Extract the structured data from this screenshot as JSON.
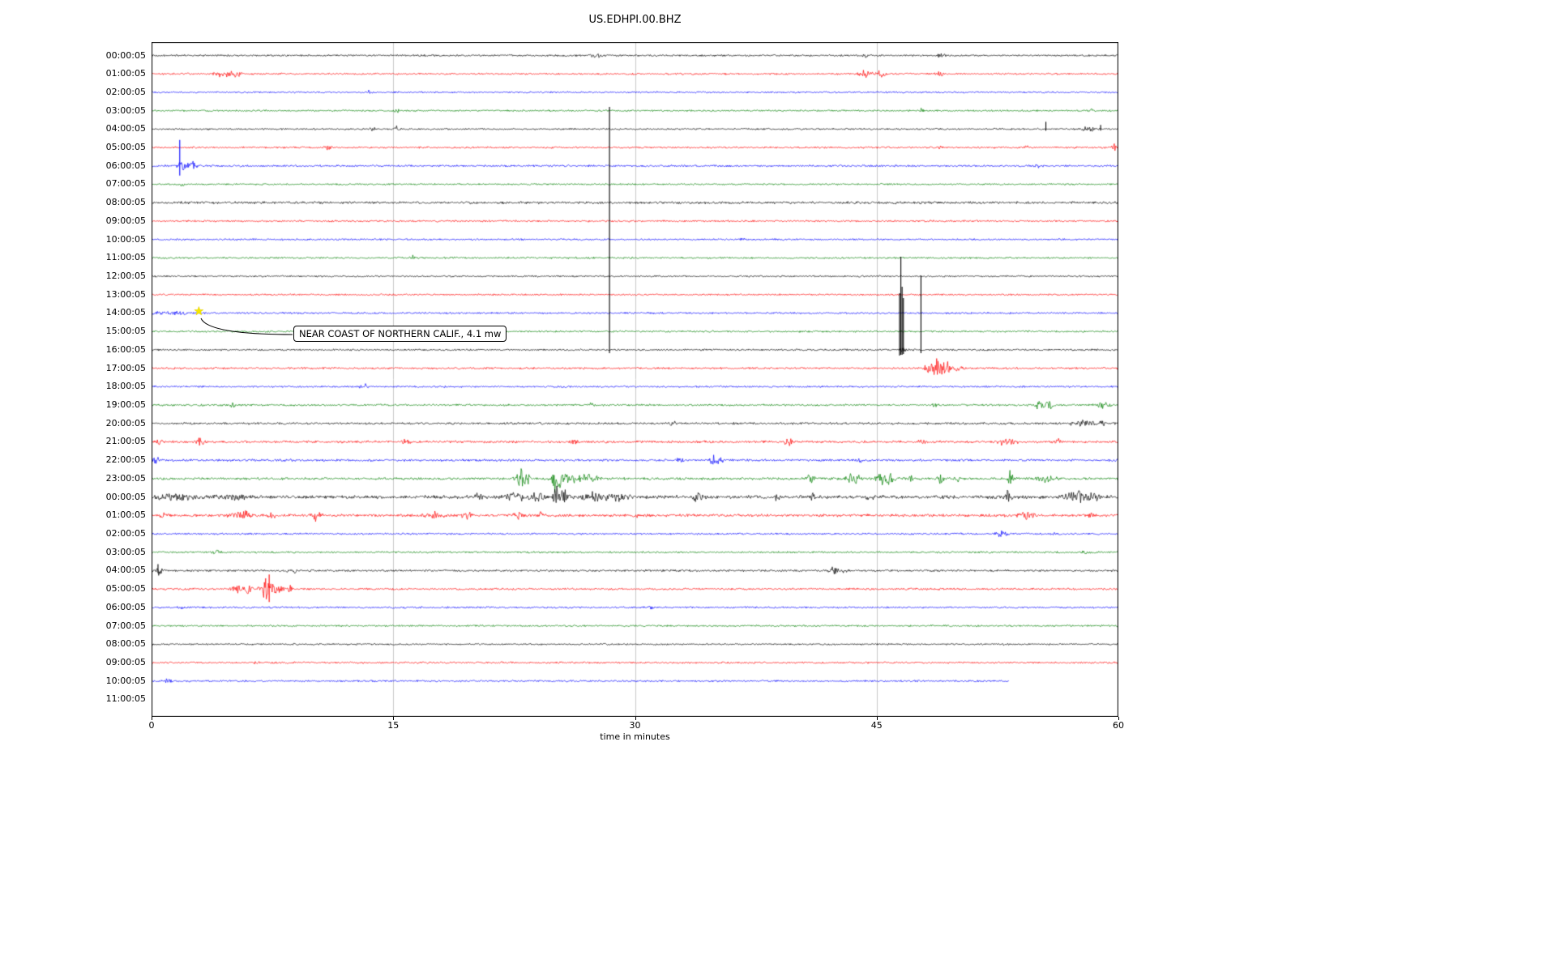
{
  "title": "US.EDHPI.00.BHZ",
  "axis": {
    "xlabel": "time in minutes",
    "x_ticks": [
      "0",
      "15",
      "30",
      "45",
      "60"
    ],
    "x_range": [
      0,
      60
    ]
  },
  "annotation": {
    "text": "NEAR COAST OF NORTHERN CALIF., 4.1 mw",
    "marker": "star",
    "row": "14:00:05",
    "x_min": 3.0
  },
  "palette": {
    "black": "#000000",
    "red": "#ff0000",
    "blue": "#0000ff",
    "green": "#008000",
    "grid": "#c9c9c9",
    "frame": "#000000",
    "star": "#f5e600"
  },
  "chart_data": {
    "type": "line",
    "subtype": "helicorder-seismogram",
    "x_unit": "minutes",
    "x_range": [
      0,
      60
    ],
    "minutes_per_row": 60,
    "rows": [
      {
        "label": "00:00:05",
        "color": "black",
        "base": 1.2,
        "bursts": [
          [
            27.5,
            0.8,
            2.5
          ],
          [
            44.3,
            0.3,
            2
          ],
          [
            49.0,
            0.4,
            3
          ]
        ],
        "spikes": [],
        "end": 60
      },
      {
        "label": "01:00:05",
        "color": "red",
        "base": 1.2,
        "bursts": [
          [
            4.6,
            1.2,
            4
          ],
          [
            5.3,
            0.5,
            3
          ],
          [
            44.4,
            0.8,
            5
          ],
          [
            45.3,
            0.5,
            4
          ],
          [
            48.9,
            0.4,
            3
          ]
        ],
        "spikes": [],
        "end": 60
      },
      {
        "label": "02:00:05",
        "color": "blue",
        "base": 1.1,
        "bursts": [
          [
            13.5,
            0.3,
            2
          ]
        ],
        "spikes": [],
        "end": 60
      },
      {
        "label": "03:00:05",
        "color": "green",
        "base": 1.1,
        "bursts": [
          [
            15.2,
            0.3,
            2.5
          ],
          [
            47.8,
            0.3,
            2.5
          ],
          [
            58.3,
            0.3,
            2
          ]
        ],
        "spikes": [],
        "end": 60
      },
      {
        "label": "04:00:05",
        "color": "black",
        "base": 1.1,
        "bursts": [
          [
            13.7,
            0.3,
            3
          ],
          [
            15.2,
            0.3,
            4
          ],
          [
            58.2,
            0.8,
            3
          ]
        ],
        "spikes": [
          [
            55.5,
            9,
            2
          ],
          [
            58.9,
            5,
            2
          ]
        ],
        "end": 60
      },
      {
        "label": "05:00:05",
        "color": "red",
        "base": 1.2,
        "bursts": [
          [
            11.0,
            0.4,
            4
          ],
          [
            49.0,
            0.3,
            2.5
          ],
          [
            54.3,
            0.3,
            2.5
          ],
          [
            59.8,
            0.3,
            6
          ]
        ],
        "spikes": [],
        "end": 60
      },
      {
        "label": "06:00:05",
        "color": "blue",
        "base": 1.3,
        "bursts": [
          [
            1.9,
            0.5,
            8
          ],
          [
            2.5,
            0.5,
            5
          ],
          [
            55.0,
            0.4,
            2.5
          ]
        ],
        "spikes": [
          [
            1.75,
            32,
            12
          ]
        ],
        "end": 60
      },
      {
        "label": "07:00:05",
        "color": "green",
        "base": 1.1,
        "bursts": [
          [
            1.8,
            0.4,
            2
          ]
        ],
        "spikes": [],
        "end": 60
      },
      {
        "label": "08:00:05",
        "color": "black",
        "base": 1.6,
        "bursts": [],
        "spikes": [],
        "end": 60
      },
      {
        "label": "09:00:05",
        "color": "red",
        "base": 1.2,
        "bursts": [],
        "spikes": [],
        "end": 60
      },
      {
        "label": "10:00:05",
        "color": "blue",
        "base": 1.1,
        "bursts": [
          [
            36.7,
            0.3,
            2.5
          ]
        ],
        "spikes": [],
        "end": 60
      },
      {
        "label": "11:00:05",
        "color": "green",
        "base": 1.2,
        "bursts": [
          [
            16.2,
            0.4,
            2.5
          ]
        ],
        "spikes": [],
        "end": 60
      },
      {
        "label": "12:00:05",
        "color": "black",
        "base": 1.1,
        "bursts": [],
        "spikes": [],
        "end": 60
      },
      {
        "label": "13:00:05",
        "color": "red",
        "base": 1.1,
        "bursts": [],
        "spikes": [],
        "end": 60
      },
      {
        "label": "14:00:05",
        "color": "blue",
        "base": 1.2,
        "bursts": [
          [
            1.5,
            3.0,
            1.6
          ]
        ],
        "spikes": [],
        "end": 60
      },
      {
        "label": "15:00:05",
        "color": "green",
        "base": 1.2,
        "bursts": [],
        "spikes": [],
        "end": 60
      },
      {
        "label": "16:00:05",
        "color": "black",
        "base": 1.2,
        "bursts": [
          [
            46.55,
            0.5,
            2
          ]
        ],
        "spikes": [
          [
            28.42,
            300,
            4
          ],
          [
            46.42,
            70,
            7
          ],
          [
            46.5,
            115,
            6
          ],
          [
            46.58,
            78,
            6
          ],
          [
            46.66,
            64,
            5
          ],
          [
            47.75,
            92,
            4
          ]
        ],
        "end": 60
      },
      {
        "label": "17:00:05",
        "color": "red",
        "base": 1.3,
        "bursts": [
          [
            48.6,
            1.0,
            13
          ],
          [
            49.4,
            0.6,
            8
          ],
          [
            50.1,
            0.4,
            4
          ]
        ],
        "spikes": [],
        "end": 60
      },
      {
        "label": "18:00:05",
        "color": "blue",
        "base": 1.2,
        "bursts": [
          [
            13.2,
            0.5,
            4
          ]
        ],
        "spikes": [],
        "end": 60
      },
      {
        "label": "19:00:05",
        "color": "green",
        "base": 1.3,
        "bursts": [
          [
            5.0,
            0.3,
            3
          ],
          [
            27.3,
            0.3,
            3.5
          ],
          [
            48.7,
            0.3,
            4
          ],
          [
            55.1,
            0.5,
            5
          ],
          [
            55.7,
            0.4,
            7
          ],
          [
            59.0,
            0.8,
            4
          ]
        ],
        "spikes": [],
        "end": 60
      },
      {
        "label": "20:00:05",
        "color": "black",
        "base": 1.4,
        "bursts": [
          [
            32.3,
            0.5,
            2.5
          ],
          [
            57.8,
            1.2,
            5
          ],
          [
            59.0,
            0.3,
            4
          ]
        ],
        "spikes": [],
        "end": 60
      },
      {
        "label": "21:00:05",
        "color": "red",
        "base": 1.6,
        "bursts": [
          [
            0.5,
            0.4,
            4
          ],
          [
            3.0,
            0.5,
            4.5
          ],
          [
            15.8,
            0.4,
            3
          ],
          [
            26.2,
            0.4,
            3
          ],
          [
            39.5,
            0.5,
            3.5
          ],
          [
            47.8,
            0.4,
            3.5
          ],
          [
            53.0,
            1.0,
            5
          ],
          [
            56.2,
            0.4,
            3
          ]
        ],
        "spikes": [],
        "end": 60
      },
      {
        "label": "22:00:05",
        "color": "blue",
        "base": 1.5,
        "bursts": [
          [
            0.3,
            0.4,
            5
          ],
          [
            32.8,
            0.4,
            6
          ],
          [
            34.9,
            0.5,
            7
          ],
          [
            35.3,
            0.3,
            5
          ],
          [
            44.0,
            0.3,
            2.5
          ]
        ],
        "spikes": [],
        "end": 60
      },
      {
        "label": "23:00:05",
        "color": "green",
        "base": 1.6,
        "bursts": [
          [
            22.9,
            0.5,
            14
          ],
          [
            23.3,
            0.3,
            8
          ],
          [
            25.1,
            0.4,
            26
          ],
          [
            25.9,
            1.5,
            7
          ],
          [
            27.2,
            1.0,
            5
          ],
          [
            40.9,
            0.4,
            8
          ],
          [
            43.6,
            0.8,
            8
          ],
          [
            45.3,
            0.7,
            9
          ],
          [
            45.9,
            0.5,
            9
          ],
          [
            47.0,
            0.4,
            6
          ],
          [
            49.0,
            0.4,
            5
          ],
          [
            50.0,
            0.3,
            4
          ],
          [
            53.3,
            0.3,
            11
          ],
          [
            55.5,
            1.0,
            4
          ]
        ],
        "spikes": [],
        "end": 60
      },
      {
        "label": "00:00:05",
        "color": "black",
        "base": 2.2,
        "bursts": [
          [
            1.5,
            2.5,
            3
          ],
          [
            5.0,
            2.0,
            3
          ],
          [
            20.3,
            0.4,
            6
          ],
          [
            22.5,
            1.0,
            6
          ],
          [
            24.0,
            1.0,
            7
          ],
          [
            25.1,
            0.3,
            18
          ],
          [
            25.6,
            0.5,
            8
          ],
          [
            27.5,
            1.5,
            6
          ],
          [
            29.0,
            1.0,
            5
          ],
          [
            33.9,
            0.6,
            5
          ],
          [
            38.8,
            0.4,
            8
          ],
          [
            41.0,
            0.4,
            4
          ],
          [
            44.6,
            0.4,
            4
          ],
          [
            53.2,
            0.4,
            8
          ],
          [
            57.5,
            1.5,
            7
          ],
          [
            58.6,
            0.4,
            6
          ]
        ],
        "spikes": [],
        "end": 60
      },
      {
        "label": "01:00:05",
        "color": "red",
        "base": 1.8,
        "bursts": [
          [
            0.8,
            0.4,
            3
          ],
          [
            5.6,
            1.2,
            5
          ],
          [
            7.5,
            0.5,
            4
          ],
          [
            10.2,
            0.6,
            6
          ],
          [
            17.5,
            1.0,
            6
          ],
          [
            19.6,
            0.5,
            5
          ],
          [
            22.7,
            0.6,
            5
          ],
          [
            24.1,
            0.4,
            4
          ],
          [
            30.0,
            0.3,
            3
          ],
          [
            54.4,
            0.8,
            5
          ],
          [
            58.3,
            0.3,
            3
          ]
        ],
        "spikes": [],
        "end": 60
      },
      {
        "label": "02:00:05",
        "color": "blue",
        "base": 1.2,
        "bursts": [
          [
            52.7,
            0.6,
            5
          ],
          [
            56.0,
            0.3,
            2.5
          ]
        ],
        "spikes": [],
        "end": 60
      },
      {
        "label": "03:00:05",
        "color": "green",
        "base": 1.2,
        "bursts": [
          [
            4.0,
            0.4,
            3
          ],
          [
            57.9,
            0.4,
            3
          ]
        ],
        "spikes": [],
        "end": 60
      },
      {
        "label": "04:00:05",
        "color": "black",
        "base": 1.3,
        "bursts": [
          [
            0.5,
            0.6,
            5
          ],
          [
            8.4,
            0.2,
            4
          ],
          [
            8.9,
            0.2,
            4
          ],
          [
            42.3,
            0.7,
            5
          ],
          [
            43.0,
            0.4,
            4
          ]
        ],
        "spikes": [
          [
            0.4,
            8,
            3
          ]
        ],
        "end": 60
      },
      {
        "label": "05:00:05",
        "color": "red",
        "base": 1.3,
        "bursts": [
          [
            5.3,
            0.6,
            5
          ],
          [
            6.0,
            0.5,
            6
          ],
          [
            7.2,
            0.8,
            14
          ],
          [
            8.0,
            0.5,
            6
          ],
          [
            8.6,
            0.3,
            4
          ]
        ],
        "spikes": [
          [
            7.3,
            18,
            16
          ]
        ],
        "end": 60
      },
      {
        "label": "06:00:05",
        "color": "blue",
        "base": 1.2,
        "bursts": [
          [
            2.0,
            0.4,
            2.5
          ],
          [
            31.0,
            0.3,
            2
          ]
        ],
        "spikes": [],
        "end": 60
      },
      {
        "label": "07:00:05",
        "color": "green",
        "base": 1.2,
        "bursts": [],
        "spikes": [],
        "end": 60
      },
      {
        "label": "08:00:05",
        "color": "black",
        "base": 1.1,
        "bursts": [],
        "spikes": [],
        "end": 60
      },
      {
        "label": "09:00:05",
        "color": "red",
        "base": 1.2,
        "bursts": [
          [
            6.5,
            0.3,
            2
          ]
        ],
        "spikes": [],
        "end": 60
      },
      {
        "label": "10:00:05",
        "color": "blue",
        "base": 1.2,
        "bursts": [
          [
            1.0,
            0.5,
            2.5
          ],
          [
            38.0,
            0.3,
            2.5
          ]
        ],
        "spikes": [],
        "end": 53.2
      },
      {
        "label": "11:00:05",
        "color": "green",
        "base": 0,
        "bursts": [],
        "spikes": [],
        "end": 0
      }
    ]
  }
}
